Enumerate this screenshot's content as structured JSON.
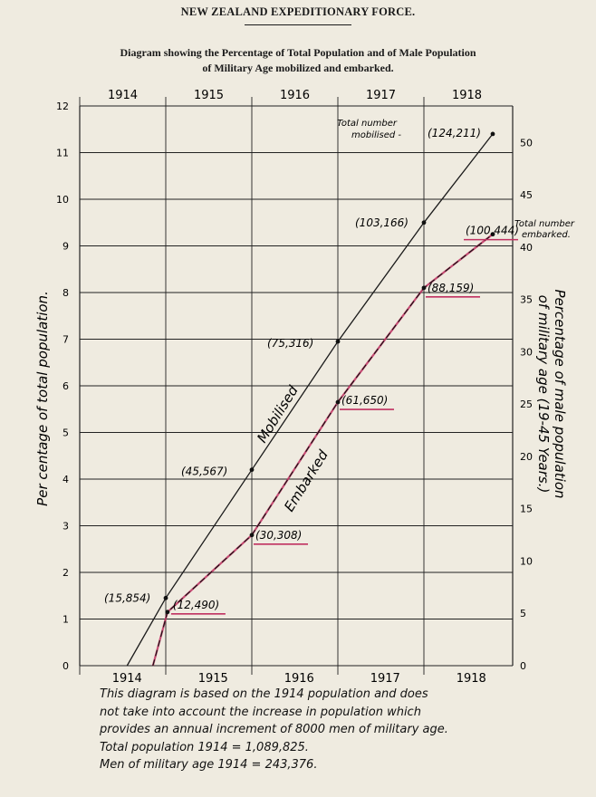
{
  "header": {
    "title": "NEW ZEALAND EXPEDITIONARY FORCE.",
    "subtitle_line1": "Diagram showing the Percentage of Total Population and of Male Population",
    "subtitle_line2": "of Military Age mobilized and embarked."
  },
  "chart_data": {
    "type": "line",
    "title": "NEW ZEALAND EXPEDITIONARY FORCE.",
    "subtitle": "Diagram showing the Percentage of Total Population and of Male Population of Military Age mobilized and embarked.",
    "categories_top": [
      "1914",
      "1915",
      "1916",
      "1917",
      "1918"
    ],
    "categories_bottom": [
      "1914",
      "1915",
      "1916",
      "1917",
      "1918"
    ],
    "ylabel_left": "Per centage of total population.",
    "ylabel_right": "Percentage of male population of military age (19-45 Years.)",
    "ylim_left": [
      0,
      12
    ],
    "yticks_left": [
      0,
      1,
      2,
      3,
      4,
      5,
      6,
      7,
      8,
      9,
      10,
      11,
      12
    ],
    "ylim_right": [
      0,
      53.5
    ],
    "yticks_right": [
      0,
      5,
      10,
      15,
      20,
      25,
      30,
      35,
      40,
      45,
      50
    ],
    "grid": true,
    "series": [
      {
        "name": "Mobilised",
        "color": "#1a1a1a",
        "start": {
          "x": 0.55,
          "y": 0
        },
        "points": [
          {
            "x": 1.0,
            "y": 1.45,
            "label": "(15,854)"
          },
          {
            "x": 2.0,
            "y": 4.2,
            "label": "(45,567)"
          },
          {
            "x": 3.0,
            "y": 6.95,
            "label": "(75,316)"
          },
          {
            "x": 4.0,
            "y": 9.5,
            "label": "(103,166)"
          },
          {
            "x": 4.8,
            "y": 11.4,
            "label": "(124,211)"
          }
        ]
      },
      {
        "name": "Embarked",
        "color": "#c03060",
        "start": {
          "x": 0.85,
          "y": 0
        },
        "points": [
          {
            "x": 1.02,
            "y": 1.15,
            "label": "(12,490)"
          },
          {
            "x": 2.0,
            "y": 2.8,
            "label": "(30,308)"
          },
          {
            "x": 3.0,
            "y": 5.65,
            "label": "(61,650)"
          },
          {
            "x": 4.0,
            "y": 8.1,
            "label": "(88,159)"
          },
          {
            "x": 4.8,
            "y": 9.25,
            "label": "(100,444)"
          }
        ]
      }
    ],
    "annotations": {
      "total_mobilised": "Total number mobilised -",
      "total_embarked": "Total number embarked."
    }
  },
  "notes": {
    "line1": "This diagram is based on the 1914 population and does",
    "line2": "not take into account the increase in population which",
    "line3": "provides an annual increment of 8000 men of military age.",
    "line4": "Total population  1914 = 1,089,825.",
    "line5": "Men of military age  1914 = 243,376."
  }
}
